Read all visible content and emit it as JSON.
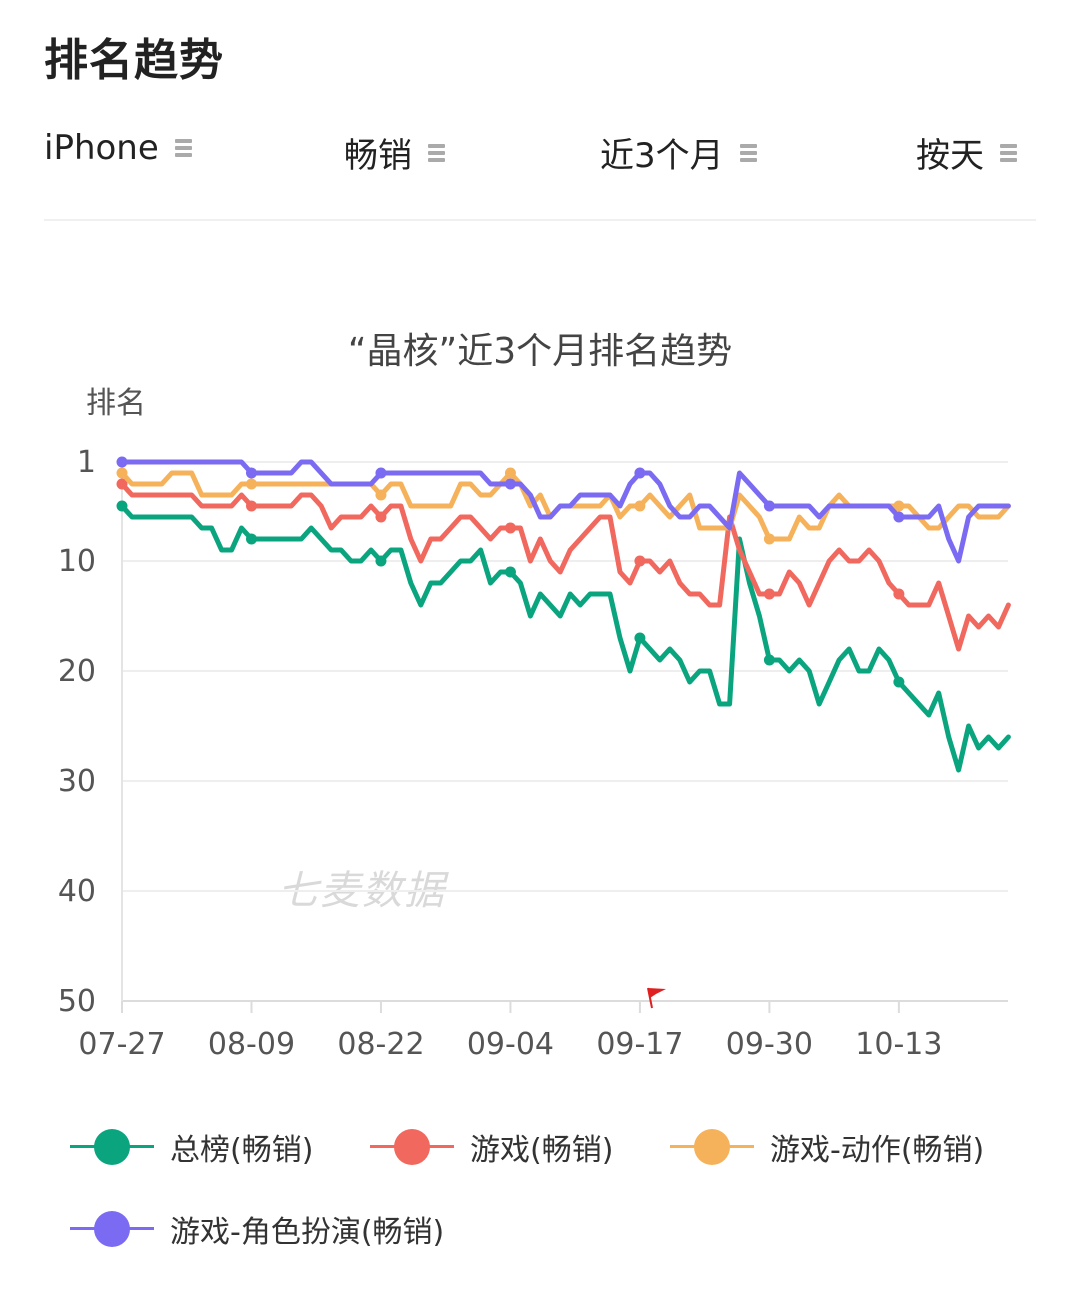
{
  "page": {
    "title": "排名趋势"
  },
  "filters": [
    {
      "label": "iPhone",
      "icon": "menu-icon"
    },
    {
      "label": "畅销",
      "icon": "menu-icon"
    },
    {
      "label": "近3个月",
      "icon": "menu-icon"
    },
    {
      "label": "按天",
      "icon": "menu-icon"
    }
  ],
  "watermark": "七麦数据",
  "legend": [
    {
      "name": "总榜(畅销)",
      "color": "#0aa57f"
    },
    {
      "name": "游戏(畅销)",
      "color": "#f0685e"
    },
    {
      "name": "游戏-动作(畅销)",
      "color": "#f6b25a"
    },
    {
      "name": "游戏-角色扮演(畅销)",
      "color": "#7b6bf2"
    }
  ],
  "chart_data": {
    "type": "line",
    "title": "“晶核”近3个月排名趋势",
    "xlabel": "",
    "ylabel": "排名",
    "y_inverted": true,
    "ylim": [
      1,
      50
    ],
    "yticks": [
      1,
      10,
      20,
      30,
      40,
      50
    ],
    "xticks": [
      "07-27",
      "08-09",
      "08-22",
      "09-04",
      "09-17",
      "09-30",
      "10-13"
    ],
    "x_start": "07-27",
    "x_step_days": 1,
    "grid": true,
    "legend_position": "bottom",
    "annotations": [
      {
        "type": "flag",
        "x": "09-18",
        "color": "#e02020"
      }
    ],
    "series": [
      {
        "name": "总榜(畅销)",
        "color": "#0aa57f",
        "values": [
          5,
          6,
          6,
          6,
          6,
          6,
          6,
          6,
          7,
          7,
          9,
          9,
          7,
          8,
          8,
          8,
          8,
          8,
          8,
          7,
          8,
          9,
          9,
          10,
          10,
          9,
          10,
          9,
          9,
          12,
          14,
          12,
          12,
          11,
          10,
          10,
          9,
          12,
          11,
          11,
          12,
          15,
          13,
          14,
          15,
          13,
          14,
          13,
          13,
          13,
          17,
          20,
          17,
          18,
          19,
          18,
          19,
          21,
          20,
          20,
          23,
          23,
          8,
          12,
          15,
          19,
          19,
          20,
          19,
          20,
          23,
          21,
          19,
          18,
          20,
          20,
          18,
          19,
          21,
          22,
          23,
          24,
          22,
          26,
          29,
          25,
          27,
          26,
          27,
          26
        ]
      },
      {
        "name": "游戏(畅销)",
        "color": "#f0685e",
        "values": [
          3,
          4,
          4,
          4,
          4,
          4,
          4,
          4,
          5,
          5,
          5,
          5,
          4,
          5,
          5,
          5,
          5,
          5,
          4,
          4,
          5,
          7,
          6,
          6,
          6,
          5,
          6,
          5,
          5,
          8,
          10,
          8,
          8,
          7,
          6,
          6,
          7,
          8,
          7,
          7,
          7,
          10,
          8,
          10,
          11,
          9,
          8,
          7,
          6,
          6,
          11,
          12,
          10,
          10,
          11,
          10,
          12,
          13,
          13,
          14,
          14,
          6,
          9,
          11,
          13,
          13,
          13,
          11,
          12,
          14,
          12,
          10,
          9,
          10,
          10,
          9,
          10,
          12,
          13,
          14,
          14,
          14,
          12,
          15,
          18,
          15,
          16,
          15,
          16,
          14
        ]
      },
      {
        "name": "游戏-动作(畅销)",
        "color": "#f6b25a",
        "values": [
          2,
          3,
          3,
          3,
          3,
          2,
          2,
          2,
          4,
          4,
          4,
          4,
          3,
          3,
          3,
          3,
          3,
          3,
          3,
          3,
          3,
          3,
          3,
          3,
          3,
          3,
          4,
          3,
          3,
          5,
          5,
          5,
          5,
          5,
          3,
          3,
          4,
          4,
          3,
          2,
          3,
          5,
          4,
          6,
          5,
          5,
          5,
          5,
          5,
          4,
          6,
          5,
          5,
          4,
          5,
          6,
          5,
          4,
          7,
          7,
          7,
          7,
          4,
          5,
          6,
          8,
          8,
          8,
          6,
          7,
          7,
          5,
          4,
          5,
          5,
          5,
          5,
          5,
          5,
          5,
          6,
          7,
          7,
          6,
          5,
          5,
          6,
          6,
          6,
          5
        ]
      },
      {
        "name": "游戏-角色扮演(畅销)",
        "color": "#7b6bf2",
        "values": [
          1,
          1,
          1,
          1,
          1,
          1,
          1,
          1,
          1,
          1,
          1,
          1,
          1,
          2,
          2,
          2,
          2,
          2,
          1,
          1,
          2,
          3,
          3,
          3,
          3,
          3,
          2,
          2,
          2,
          2,
          2,
          2,
          2,
          2,
          2,
          2,
          2,
          3,
          3,
          3,
          3,
          4,
          6,
          6,
          5,
          5,
          4,
          4,
          4,
          4,
          5,
          3,
          2,
          2,
          3,
          5,
          6,
          6,
          5,
          5,
          6,
          7,
          2,
          3,
          4,
          5,
          5,
          5,
          5,
          5,
          6,
          5,
          5,
          5,
          5,
          5,
          5,
          5,
          6,
          6,
          6,
          6,
          5,
          8,
          10,
          6,
          5,
          5,
          5,
          5
        ]
      }
    ]
  }
}
